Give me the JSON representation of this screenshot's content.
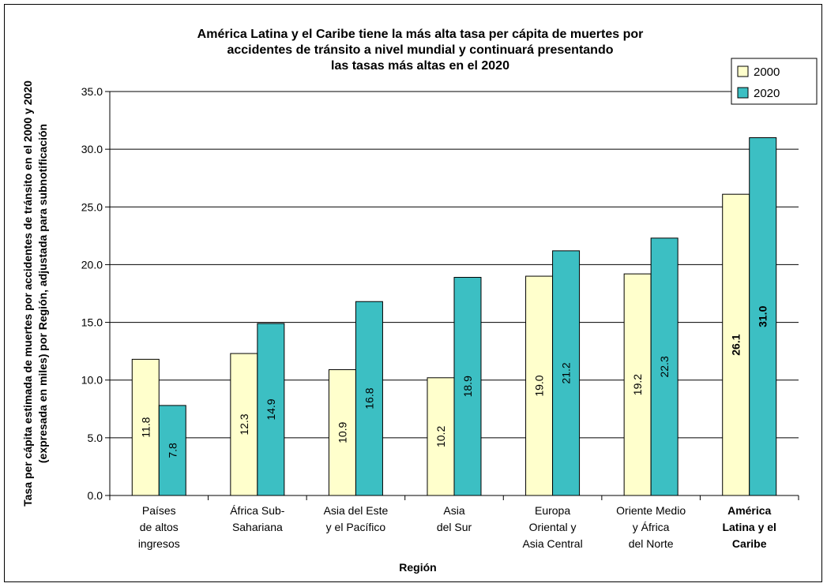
{
  "chart_data": {
    "type": "bar",
    "title": [
      "América Latina y el Caribe tiene la más alta tasa per cápita de muertes por",
      "accidentes de tránsito a nivel mundial y continuará presentando",
      "las tasas más altas en el 2020"
    ],
    "ylabel": [
      "Tasa per cápita estimada de muertes por accidentes de tránsito en el 2000 y 2020",
      "(expresada en miles) por Región, adjustada para subnotificación"
    ],
    "xlabel": "Región",
    "ylim": [
      0,
      35
    ],
    "yticks": [
      "0.0",
      "5.0",
      "10.0",
      "15.0",
      "20.0",
      "25.0",
      "30.0",
      "35.0"
    ],
    "grid": true,
    "legend_position": "top-right",
    "categories": [
      {
        "lines": [
          "Países",
          "de altos",
          "ingresos"
        ],
        "bold": false
      },
      {
        "lines": [
          "África Sub-",
          "Sahariana"
        ],
        "bold": false
      },
      {
        "lines": [
          "Asia del Este",
          "y el Pacífico"
        ],
        "bold": false
      },
      {
        "lines": [
          "Asia",
          "del Sur"
        ],
        "bold": false
      },
      {
        "lines": [
          "Europa",
          "Oriental y",
          "Asia Central"
        ],
        "bold": false
      },
      {
        "lines": [
          "Oriente Medio",
          "y África",
          "del Norte"
        ],
        "bold": false
      },
      {
        "lines": [
          "América",
          "Latina y el",
          "Caribe"
        ],
        "bold": true
      }
    ],
    "series": [
      {
        "name": "2000",
        "color": "#ffffcc",
        "values": [
          11.8,
          12.3,
          10.9,
          10.2,
          19.0,
          19.2,
          26.1
        ],
        "labels": [
          "11.8",
          "12.3",
          "10.9",
          "10.2",
          "19.0",
          "19.2",
          "26.1"
        ]
      },
      {
        "name": "2020",
        "color": "#3cbfc3",
        "values": [
          7.8,
          14.9,
          16.8,
          18.9,
          21.2,
          22.3,
          31.0
        ],
        "labels": [
          "7.8",
          "14.9",
          "16.8",
          "18.9",
          "21.2",
          "22.3",
          "31.0"
        ]
      }
    ]
  }
}
